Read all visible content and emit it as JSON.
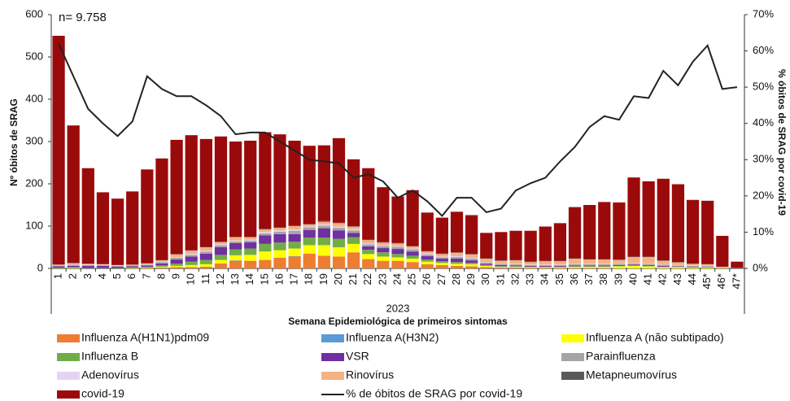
{
  "chart_data": {
    "type": "bar",
    "annotation": "n= 9.758",
    "ylabel": "Nº óbitos de SRAG",
    "y2label": "% óbitos de SRAG por covid-19",
    "xlabel": "Semana Epidemiológica de primeiros sintomas",
    "year": "2023",
    "stacked": true,
    "categories": [
      "1",
      "2",
      "3",
      "4",
      "5",
      "6",
      "7",
      "8",
      "9",
      "10",
      "11",
      "12",
      "13",
      "14",
      "15",
      "16",
      "17",
      "18",
      "19",
      "20",
      "21",
      "22",
      "23",
      "24",
      "25",
      "26",
      "27",
      "28",
      "29",
      "30",
      "31",
      "32",
      "33",
      "34",
      "35",
      "36",
      "37",
      "38",
      "39",
      "40",
      "41",
      "42",
      "43",
      "44",
      "45*",
      "46*",
      "47*"
    ],
    "ylim": [
      0,
      600
    ],
    "yticks": [
      0,
      100,
      200,
      300,
      400,
      500,
      600
    ],
    "y2lim": [
      0,
      70
    ],
    "y2ticks": [
      {
        "value": 0,
        "label": "0%"
      },
      {
        "value": 10,
        "label": "10%"
      },
      {
        "value": 20,
        "label": "20%"
      },
      {
        "value": 30,
        "label": "30%"
      },
      {
        "value": 40,
        "label": "40%"
      },
      {
        "value": 50,
        "label": "50%"
      },
      {
        "value": 60,
        "label": "60%"
      },
      {
        "value": 70,
        "label": "70%"
      }
    ],
    "series": [
      {
        "name": "Influenza A(H1N1)pdm09",
        "color": "#ed7d31",
        "values": [
          0,
          0,
          0,
          0,
          0,
          0,
          1,
          2,
          3,
          3,
          4,
          12,
          18,
          18,
          20,
          25,
          28,
          35,
          30,
          28,
          38,
          22,
          18,
          18,
          15,
          10,
          8,
          6,
          5,
          3,
          2,
          2,
          1,
          1,
          1,
          1,
          1,
          1,
          0,
          0,
          0,
          0,
          0,
          0,
          0,
          0,
          0
        ]
      },
      {
        "name": "Influenza A(H3N2)",
        "color": "#5b9bd5",
        "values": [
          0,
          0,
          0,
          0,
          0,
          0,
          0,
          0,
          0,
          0,
          0,
          0,
          1,
          0,
          0,
          0,
          1,
          0,
          0,
          0,
          0,
          0,
          0,
          0,
          0,
          0,
          0,
          0,
          0,
          0,
          0,
          0,
          0,
          0,
          0,
          0,
          0,
          0,
          0,
          0,
          0,
          0,
          0,
          0,
          0,
          0,
          0
        ]
      },
      {
        "name": "Influenza A (não subtipado)",
        "color": "#ffff00",
        "values": [
          0,
          1,
          0,
          0,
          0,
          1,
          1,
          2,
          3,
          5,
          6,
          8,
          12,
          14,
          20,
          18,
          18,
          20,
          25,
          22,
          20,
          12,
          10,
          8,
          8,
          6,
          5,
          5,
          5,
          3,
          2,
          2,
          2,
          2,
          2,
          3,
          3,
          3,
          5,
          6,
          5,
          3,
          3,
          2,
          2,
          1,
          0
        ]
      },
      {
        "name": "Influenza B",
        "color": "#70ad47",
        "values": [
          2,
          2,
          1,
          1,
          1,
          1,
          2,
          3,
          5,
          8,
          10,
          12,
          14,
          15,
          18,
          18,
          16,
          18,
          18,
          20,
          16,
          10,
          10,
          8,
          7,
          5,
          4,
          4,
          3,
          2,
          1,
          1,
          1,
          1,
          1,
          1,
          1,
          1,
          1,
          1,
          1,
          1,
          1,
          1,
          0,
          0,
          0
        ]
      },
      {
        "name": "VSR",
        "color": "#7030a0",
        "values": [
          3,
          3,
          5,
          5,
          3,
          3,
          3,
          5,
          10,
          12,
          15,
          18,
          15,
          15,
          20,
          20,
          18,
          18,
          22,
          20,
          10,
          8,
          10,
          12,
          10,
          8,
          6,
          8,
          6,
          3,
          3,
          2,
          2,
          2,
          2,
          2,
          2,
          2,
          2,
          2,
          2,
          2,
          1,
          1,
          1,
          0,
          0
        ]
      },
      {
        "name": "Parainfluenza",
        "color": "#a5a5a5",
        "values": [
          2,
          3,
          2,
          2,
          2,
          2,
          2,
          3,
          4,
          4,
          5,
          5,
          4,
          4,
          5,
          6,
          8,
          6,
          6,
          6,
          6,
          5,
          5,
          5,
          5,
          4,
          3,
          4,
          4,
          3,
          3,
          3,
          2,
          2,
          2,
          3,
          3,
          3,
          3,
          3,
          3,
          3,
          2,
          2,
          2,
          1,
          1
        ]
      },
      {
        "name": "Adenovírus",
        "color": "#e4d4f2",
        "values": [
          1,
          1,
          1,
          1,
          1,
          0,
          1,
          1,
          2,
          2,
          2,
          2,
          2,
          2,
          3,
          3,
          3,
          2,
          3,
          3,
          3,
          2,
          2,
          2,
          2,
          2,
          2,
          2,
          2,
          1,
          1,
          1,
          1,
          1,
          1,
          1,
          1,
          1,
          1,
          1,
          1,
          1,
          1,
          1,
          1,
          0,
          0
        ]
      },
      {
        "name": "Rinovírus",
        "color": "#f4b183",
        "values": [
          1,
          2,
          2,
          1,
          1,
          2,
          2,
          3,
          6,
          8,
          8,
          5,
          8,
          6,
          6,
          6,
          8,
          5,
          6,
          8,
          6,
          8,
          6,
          6,
          5,
          5,
          6,
          8,
          8,
          8,
          6,
          8,
          6,
          8,
          8,
          12,
          10,
          10,
          8,
          14,
          15,
          8,
          6,
          4,
          4,
          2,
          0
        ]
      },
      {
        "name": "Metapneumovírus",
        "color": "#595959",
        "values": [
          0,
          1,
          0,
          0,
          0,
          0,
          0,
          1,
          1,
          1,
          1,
          1,
          1,
          1,
          2,
          1,
          2,
          1,
          2,
          1,
          1,
          1,
          1,
          1,
          1,
          1,
          1,
          1,
          1,
          1,
          1,
          1,
          1,
          1,
          1,
          1,
          1,
          1,
          1,
          1,
          1,
          1,
          1,
          0,
          0,
          0,
          0
        ]
      },
      {
        "name": "covid-19",
        "color": "#9b0a0a",
        "values": [
          541,
          325,
          226,
          170,
          157,
          173,
          222,
          240,
          270,
          272,
          255,
          249,
          225,
          227,
          228,
          220,
          200,
          185,
          179,
          200,
          158,
          169,
          130,
          110,
          132,
          91,
          85,
          96,
          92,
          60,
          67,
          69,
          73,
          81,
          89,
          121,
          128,
          135,
          135,
          187,
          178,
          193,
          184,
          151,
          150,
          73,
          15
        ]
      },
      {
        "name": "% de óbitos de SRAG por covid-19",
        "color": "#222222",
        "type": "line",
        "axis": "y2",
        "values": [
          62,
          53,
          44,
          40,
          36.5,
          40.5,
          53,
          49.5,
          47.5,
          47.5,
          45,
          42,
          37,
          37.5,
          37.5,
          35,
          32.5,
          30,
          29.5,
          29,
          25,
          26,
          24,
          19.5,
          21.5,
          18.5,
          14.5,
          19.5,
          19.5,
          15.5,
          16.5,
          21.5,
          23.5,
          25,
          29.5,
          33.5,
          39,
          42,
          41,
          47.5,
          47,
          54.5,
          50.5,
          57,
          61.5,
          49.5,
          50
        ]
      }
    ]
  }
}
